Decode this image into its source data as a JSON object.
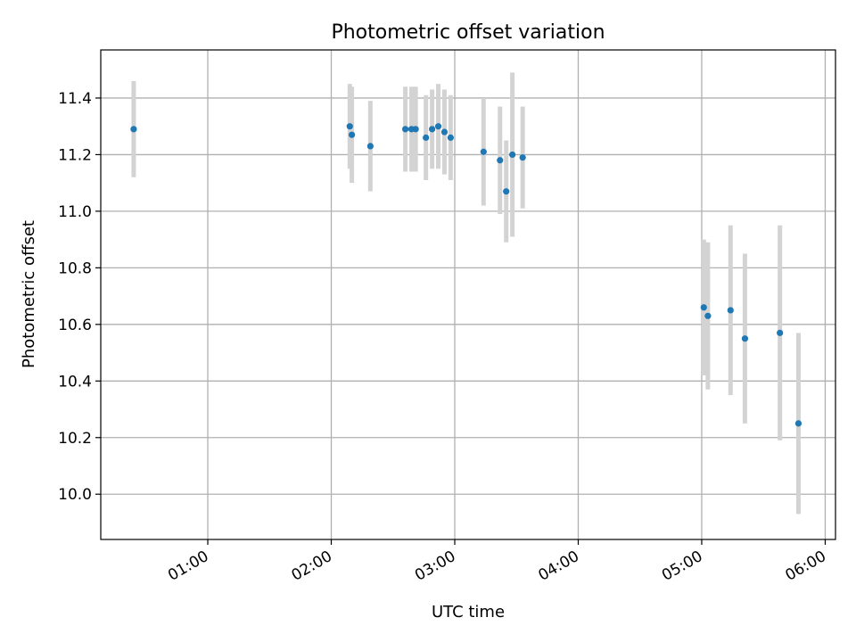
{
  "chart_data": {
    "type": "scatter",
    "title": "Photometric offset variation",
    "xlabel": "UTC time",
    "ylabel": "Photometric offset",
    "xlim": [
      "00:08",
      "06:05"
    ],
    "ylim": [
      9.84,
      11.57
    ],
    "grid": true,
    "x_ticks": [
      "01:00",
      "02:00",
      "03:00",
      "04:00",
      "05:00",
      "06:00"
    ],
    "y_ticks": [
      "10.0",
      "10.2",
      "10.4",
      "10.6",
      "10.8",
      "11.0",
      "11.2",
      "11.4"
    ],
    "errorbar_color": "#d3d3d3",
    "point_color": "#1f77b4",
    "series": [
      {
        "x": [
          "00:24",
          "02:09",
          "02:10",
          "02:19",
          "02:36",
          "02:39",
          "02:41",
          "02:46",
          "02:49",
          "02:52",
          "02:55",
          "02:58",
          "03:14",
          "03:22",
          "03:25",
          "03:28",
          "03:33",
          "05:01",
          "05:03",
          "05:14",
          "05:21",
          "05:38",
          "05:47"
        ],
        "y": [
          11.29,
          11.3,
          11.27,
          11.23,
          11.29,
          11.29,
          11.29,
          11.26,
          11.29,
          11.3,
          11.28,
          11.26,
          11.21,
          11.18,
          11.07,
          11.2,
          11.19,
          10.66,
          10.63,
          10.65,
          10.55,
          10.57,
          10.25
        ],
        "yerr": [
          0.17,
          0.15,
          0.17,
          0.16,
          0.15,
          0.15,
          0.15,
          0.15,
          0.14,
          0.15,
          0.15,
          0.15,
          0.19,
          0.19,
          0.18,
          0.29,
          0.18,
          0.24,
          0.26,
          0.3,
          0.3,
          0.38,
          0.32
        ]
      }
    ]
  }
}
